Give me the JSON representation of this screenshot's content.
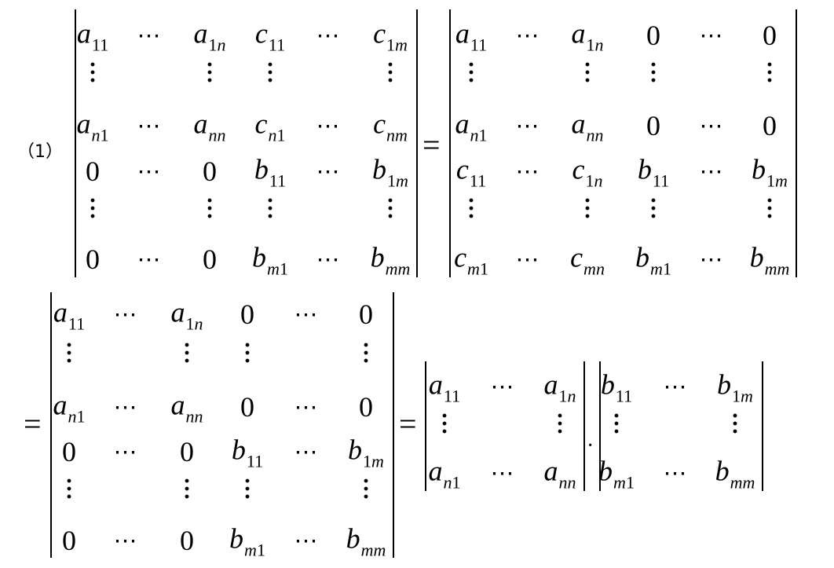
{
  "label": "（1）",
  "equals": "=",
  "dot_op": "·",
  "dots": "⋯",
  "d1": [
    [
      [
        "a",
        "11"
      ],
      "h",
      [
        "a",
        "1n"
      ],
      [
        "c",
        "11"
      ],
      "h",
      [
        "c",
        "1m"
      ]
    ],
    [
      "v",
      "",
      "v",
      "v",
      "",
      "v"
    ],
    [
      [
        "a",
        "n1"
      ],
      "h",
      [
        "a",
        "nn"
      ],
      [
        "c",
        "n1"
      ],
      "h",
      [
        "c",
        "nm"
      ]
    ],
    [
      "0",
      "h",
      "0",
      [
        "b",
        "11"
      ],
      "h",
      [
        "b",
        "1m"
      ]
    ],
    [
      "v",
      "",
      "v",
      "v",
      "",
      "v"
    ],
    [
      "0",
      "h",
      "0",
      [
        "b",
        "m1"
      ],
      "h",
      [
        "b",
        "mm"
      ]
    ]
  ],
  "d2": [
    [
      [
        "a",
        "11"
      ],
      "h",
      [
        "a",
        "1n"
      ],
      "0",
      "h",
      "0"
    ],
    [
      "v",
      "",
      "v",
      "v",
      "",
      "v"
    ],
    [
      [
        "a",
        "n1"
      ],
      "h",
      [
        "a",
        "nn"
      ],
      "0",
      "h",
      "0"
    ],
    [
      [
        "c",
        "11"
      ],
      "h",
      [
        "c",
        "1n"
      ],
      [
        "b",
        "11"
      ],
      "h",
      [
        "b",
        "1m"
      ]
    ],
    [
      "v",
      "",
      "v",
      "v",
      "",
      "v"
    ],
    [
      [
        "c",
        "m1"
      ],
      "h",
      [
        "c",
        "mn"
      ],
      [
        "b",
        "m1"
      ],
      "h",
      [
        "b",
        "mm"
      ]
    ]
  ],
  "d3": [
    [
      [
        "a",
        "11"
      ],
      "h",
      [
        "a",
        "1n"
      ],
      "0",
      "h",
      "0"
    ],
    [
      "v",
      "",
      "v",
      "v",
      "",
      "v"
    ],
    [
      [
        "a",
        "n1"
      ],
      "h",
      [
        "a",
        "nn"
      ],
      "0",
      "h",
      "0"
    ],
    [
      "0",
      "h",
      "0",
      [
        "b",
        "11"
      ],
      "h",
      [
        "b",
        "1m"
      ]
    ],
    [
      "v",
      "",
      "v",
      "v",
      "",
      "v"
    ],
    [
      "0",
      "h",
      "0",
      [
        "b",
        "m1"
      ],
      "h",
      [
        "b",
        "mm"
      ]
    ]
  ],
  "d4": [
    [
      [
        "a",
        "11"
      ],
      "h",
      [
        "a",
        "1n"
      ]
    ],
    [
      "v",
      "",
      "v"
    ],
    [
      [
        "a",
        "n1"
      ],
      "h",
      [
        "a",
        "nn"
      ]
    ]
  ],
  "d5": [
    [
      [
        "b",
        "11"
      ],
      "h",
      [
        "b",
        "1m"
      ]
    ],
    [
      "v",
      "",
      "v"
    ],
    [
      [
        "b",
        "m1"
      ],
      "h",
      [
        "b",
        "mm"
      ]
    ]
  ]
}
